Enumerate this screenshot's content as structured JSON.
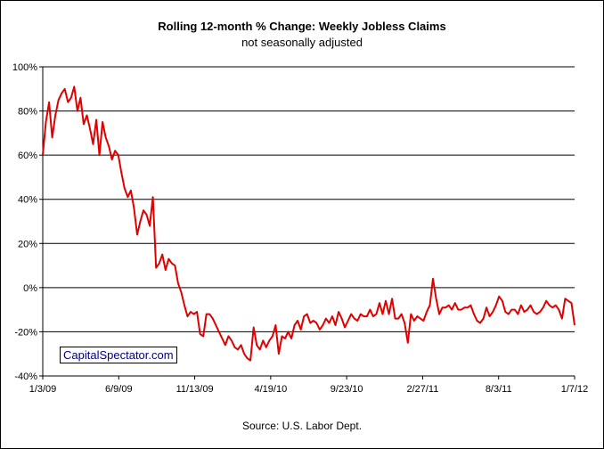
{
  "title": "Rolling 12-month %  Change: Weekly Jobless Claims",
  "subtitle": "not seasonally adjusted",
  "source": "Source: U.S. Labor Dept.",
  "watermark": "CapitalSpectator.com",
  "colors": {
    "series": "#e00000",
    "grid": "#000000",
    "background": "#ffffff"
  },
  "chart_data": {
    "type": "line",
    "ylim": [
      -40,
      100
    ],
    "y_ticks": [
      "-40%",
      "-20%",
      "0%",
      "20%",
      "40%",
      "60%",
      "80%",
      "100%"
    ],
    "x_ticks": [
      "1/3/09",
      "6/9/09",
      "11/13/09",
      "4/19/10",
      "9/23/10",
      "2/27/11",
      "8/3/11",
      "1/7/12"
    ],
    "grid": "horizontal",
    "series": [
      {
        "color": "#e00000",
        "note": "weekly values, first point 1/3/09, last point 1/7/12",
        "values": [
          60,
          75,
          84,
          68,
          78,
          85,
          88,
          90,
          84,
          86,
          91,
          80,
          86,
          74,
          78,
          72,
          65,
          76,
          60,
          75,
          68,
          64,
          58,
          62,
          60,
          52,
          45,
          41,
          44,
          36,
          24,
          30,
          35,
          33,
          28,
          41,
          9,
          11,
          15,
          8,
          13,
          11,
          10,
          2,
          -2,
          -8,
          -13,
          -11,
          -12,
          -11,
          -21,
          -22,
          -12,
          -12,
          -14,
          -17,
          -20,
          -23,
          -26,
          -22,
          -24,
          -27,
          -28,
          -26,
          -30,
          -32,
          -33,
          -18,
          -26,
          -28,
          -24,
          -27,
          -24,
          -22,
          -17,
          -30,
          -22,
          -23,
          -20,
          -23,
          -17,
          -15,
          -19,
          -13,
          -12,
          -16,
          -15,
          -16,
          -19,
          -17,
          -14,
          -16,
          -13,
          -17,
          -11,
          -14,
          -18,
          -15,
          -12,
          -14,
          -15,
          -12,
          -13,
          -13,
          -10,
          -13,
          -12,
          -7,
          -12,
          -6,
          -12,
          -5,
          -14,
          -14,
          -12,
          -16,
          -25,
          -12,
          -15,
          -13,
          -14,
          -15,
          -11,
          -8,
          4,
          -5,
          -12,
          -9,
          -9,
          -8,
          -10,
          -7,
          -10,
          -10,
          -9,
          -9,
          -8,
          -12,
          -15,
          -16,
          -14,
          -9,
          -13,
          -11,
          -8,
          -4,
          -6,
          -11,
          -12,
          -10,
          -10,
          -12,
          -8,
          -11,
          -10,
          -8,
          -11,
          -12,
          -11,
          -9,
          -6,
          -8,
          -9,
          -8,
          -10,
          -14,
          -5,
          -6,
          -7,
          -17
        ]
      }
    ]
  }
}
